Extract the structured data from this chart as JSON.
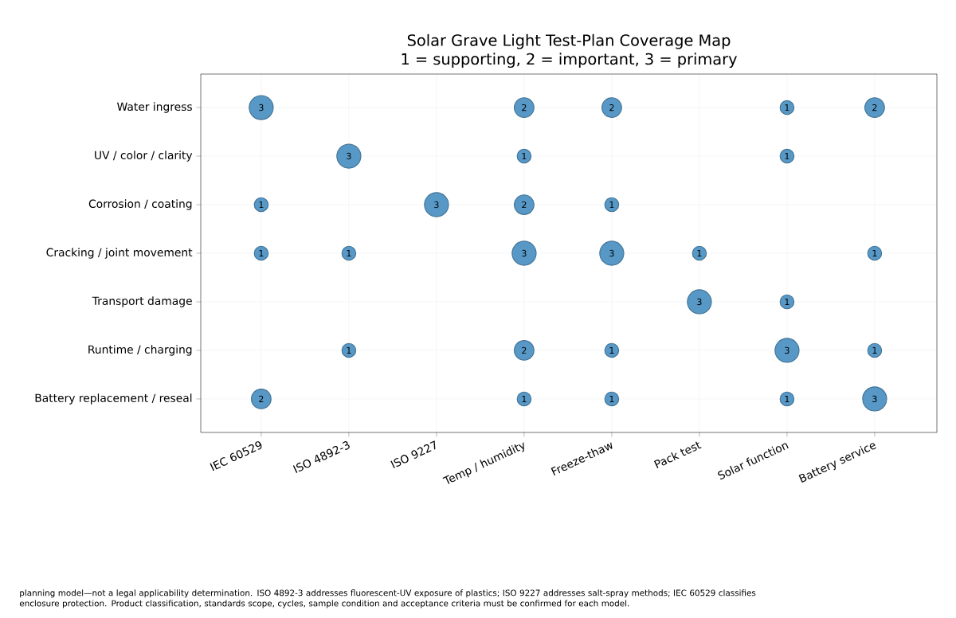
{
  "chart_data": {
    "type": "heatmap",
    "title": "Solar Grave Light Test-Plan Coverage Map",
    "subtitle": "1 = supporting, 2 = important, 3 = primary",
    "categories": [
      "IEC 60529",
      "ISO 4892-3",
      "ISO 9227",
      "Temp / humidity",
      "Freeze-thaw",
      "Pack test",
      "Solar function",
      "Battery service"
    ],
    "y_categories": [
      "Water ingress",
      "UV / color / clarity",
      "Corrosion / coating",
      "Cracking / joint movement",
      "Transport damage",
      "Runtime / charging",
      "Battery replacement / reseal"
    ],
    "cells": [
      [
        3,
        null,
        null,
        2,
        2,
        null,
        1,
        2
      ],
      [
        null,
        3,
        null,
        1,
        null,
        null,
        1,
        null
      ],
      [
        1,
        null,
        3,
        2,
        1,
        null,
        null,
        null
      ],
      [
        1,
        1,
        null,
        3,
        3,
        1,
        null,
        1
      ],
      [
        null,
        null,
        null,
        null,
        null,
        3,
        1,
        null
      ],
      [
        null,
        1,
        null,
        2,
        1,
        null,
        3,
        1
      ],
      [
        2,
        null,
        null,
        1,
        1,
        null,
        1,
        3
      ]
    ],
    "cell_labels": [
      [
        "3",
        null,
        null,
        "2",
        "2",
        null,
        "1",
        "2"
      ],
      [
        null,
        "3",
        null,
        "1",
        null,
        null,
        "1",
        null
      ],
      [
        "1",
        null,
        "3",
        "2",
        "1",
        null,
        null,
        null
      ],
      [
        "1",
        "1",
        null,
        "3",
        "3",
        "1",
        null,
        "1"
      ],
      [
        null,
        null,
        null,
        null,
        null,
        "3",
        "1",
        null
      ],
      [
        null,
        "1",
        null,
        "2",
        "1",
        null,
        "3",
        "1"
      ],
      [
        "2",
        null,
        null,
        "1",
        "1",
        null,
        "1",
        "3"
      ]
    ],
    "color": "#5798c6",
    "data_labels": true,
    "grid": true,
    "annotations": [
      "planning model—not a legal applicability determination. ISO 4892-3 addresses fluorescent-UV exposure of plastics; ISO 9227 addresses salt-spray methods; IEC 60529 classifies enclosure protection. Product classification, standards scope, cycles, sample condition and acceptance criteria must be confirmed for each model."
    ]
  }
}
